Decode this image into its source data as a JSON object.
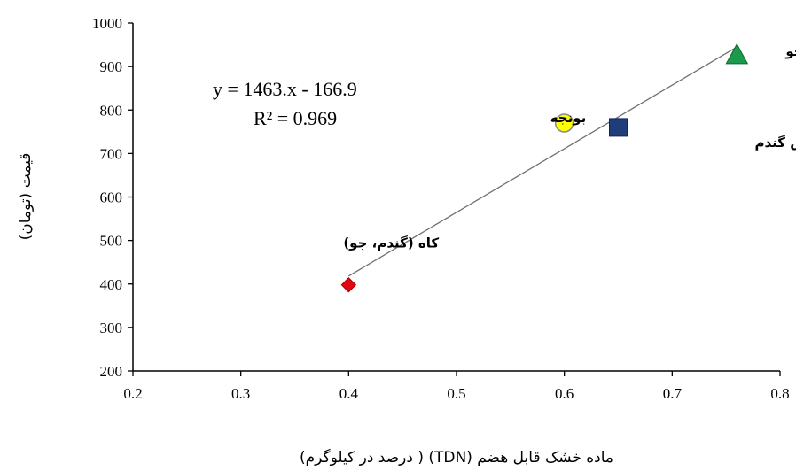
{
  "chart_data": {
    "type": "scatter",
    "title": "",
    "xlabel": "ماده خشک قابل هضم (TDN) ( درصد در کیلوگرم)",
    "ylabel": "قیمت (تومان)",
    "xlim": [
      0.2,
      0.8
    ],
    "ylim": [
      200,
      1000
    ],
    "xticks": [
      "0.2",
      "0.3",
      "0.4",
      "0.5",
      "0.6",
      "0.7",
      "0.8"
    ],
    "yticks": [
      "200",
      "300",
      "400",
      "500",
      "600",
      "700",
      "800",
      "900",
      "1000"
    ],
    "grid": false,
    "points": [
      {
        "label": "کاه (گندم، جو)",
        "x": 0.4,
        "y": 398,
        "marker": "diamond",
        "color": "#e30613"
      },
      {
        "label": "بونجه",
        "x": 0.6,
        "y": 770,
        "marker": "circle",
        "color": "#ffff00"
      },
      {
        "label": "سبوس گندم",
        "x": 0.65,
        "y": 760,
        "marker": "square",
        "color": "#1f3d7a"
      },
      {
        "label": "جو",
        "x": 0.76,
        "y": 925,
        "marker": "triangle",
        "color": "#1a9a4a"
      }
    ],
    "trendline": {
      "x": [
        0.4,
        0.76
      ],
      "slope": 1463,
      "intercept": -166.9
    },
    "equation": "y = 1463.x - 166.9",
    "r_squared": "R² = 0.969"
  }
}
